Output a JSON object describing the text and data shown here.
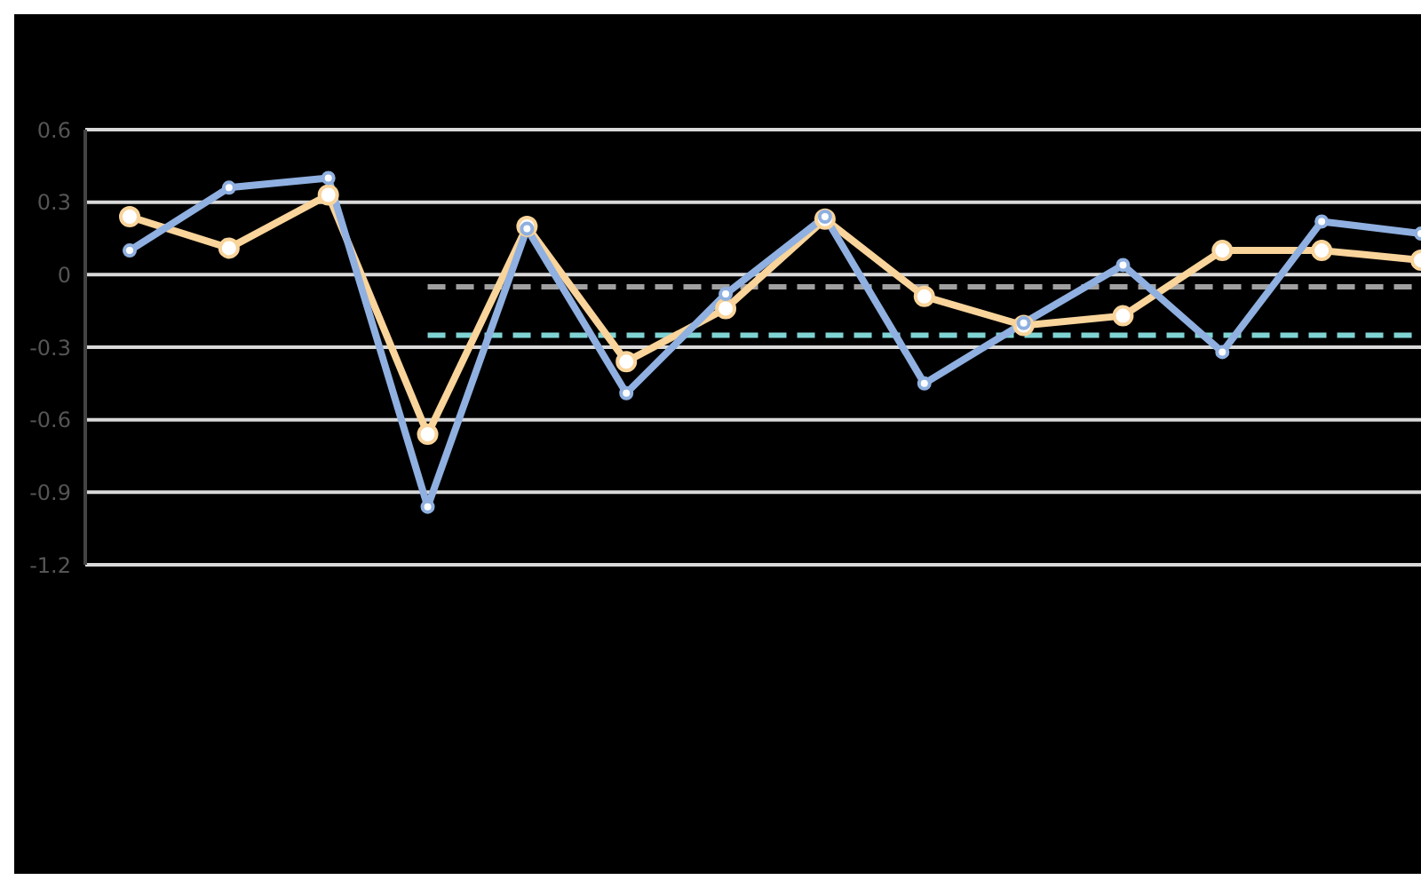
{
  "chart_data": {
    "type": "line",
    "categories": [
      null,
      null,
      null,
      null,
      null,
      null,
      null,
      null,
      null,
      null,
      null,
      null,
      null,
      null
    ],
    "series": [
      {
        "color": "#8fb0e0",
        "values": [
          0.1,
          0.36,
          0.4,
          -0.96,
          0.19,
          -0.49,
          -0.08,
          0.24,
          -0.45,
          -0.2,
          0.04,
          -0.32,
          0.22,
          0.17
        ]
      },
      {
        "color": "#f9d49b",
        "values": [
          0.24,
          0.11,
          0.33,
          -0.66,
          0.2,
          -0.36,
          -0.14,
          0.23,
          -0.09,
          -0.21,
          -0.17,
          0.1,
          0.1,
          0.06
        ]
      },
      {
        "color": "#7fd3d3",
        "line_style": "dashed",
        "marker": "none",
        "values": [
          null,
          null,
          null,
          -0.25,
          -0.25,
          -0.25,
          -0.25,
          -0.25,
          -0.25,
          -0.25,
          -0.25,
          -0.25,
          -0.25,
          -0.25
        ]
      },
      {
        "color": "#a0a0a0",
        "line_style": "dashed",
        "marker": "none",
        "values": [
          null,
          null,
          null,
          -0.05,
          -0.05,
          -0.05,
          -0.05,
          -0.05,
          -0.05,
          -0.05,
          -0.05,
          -0.05,
          -0.05,
          -0.05
        ]
      }
    ],
    "ylim": [
      -1.2,
      0.6
    ],
    "yticks": [
      -1.2,
      -0.9,
      -0.6,
      -0.3,
      0,
      0.3,
      0.6
    ],
    "grid": "y",
    "marker": "circle",
    "line_style": "solid"
  }
}
